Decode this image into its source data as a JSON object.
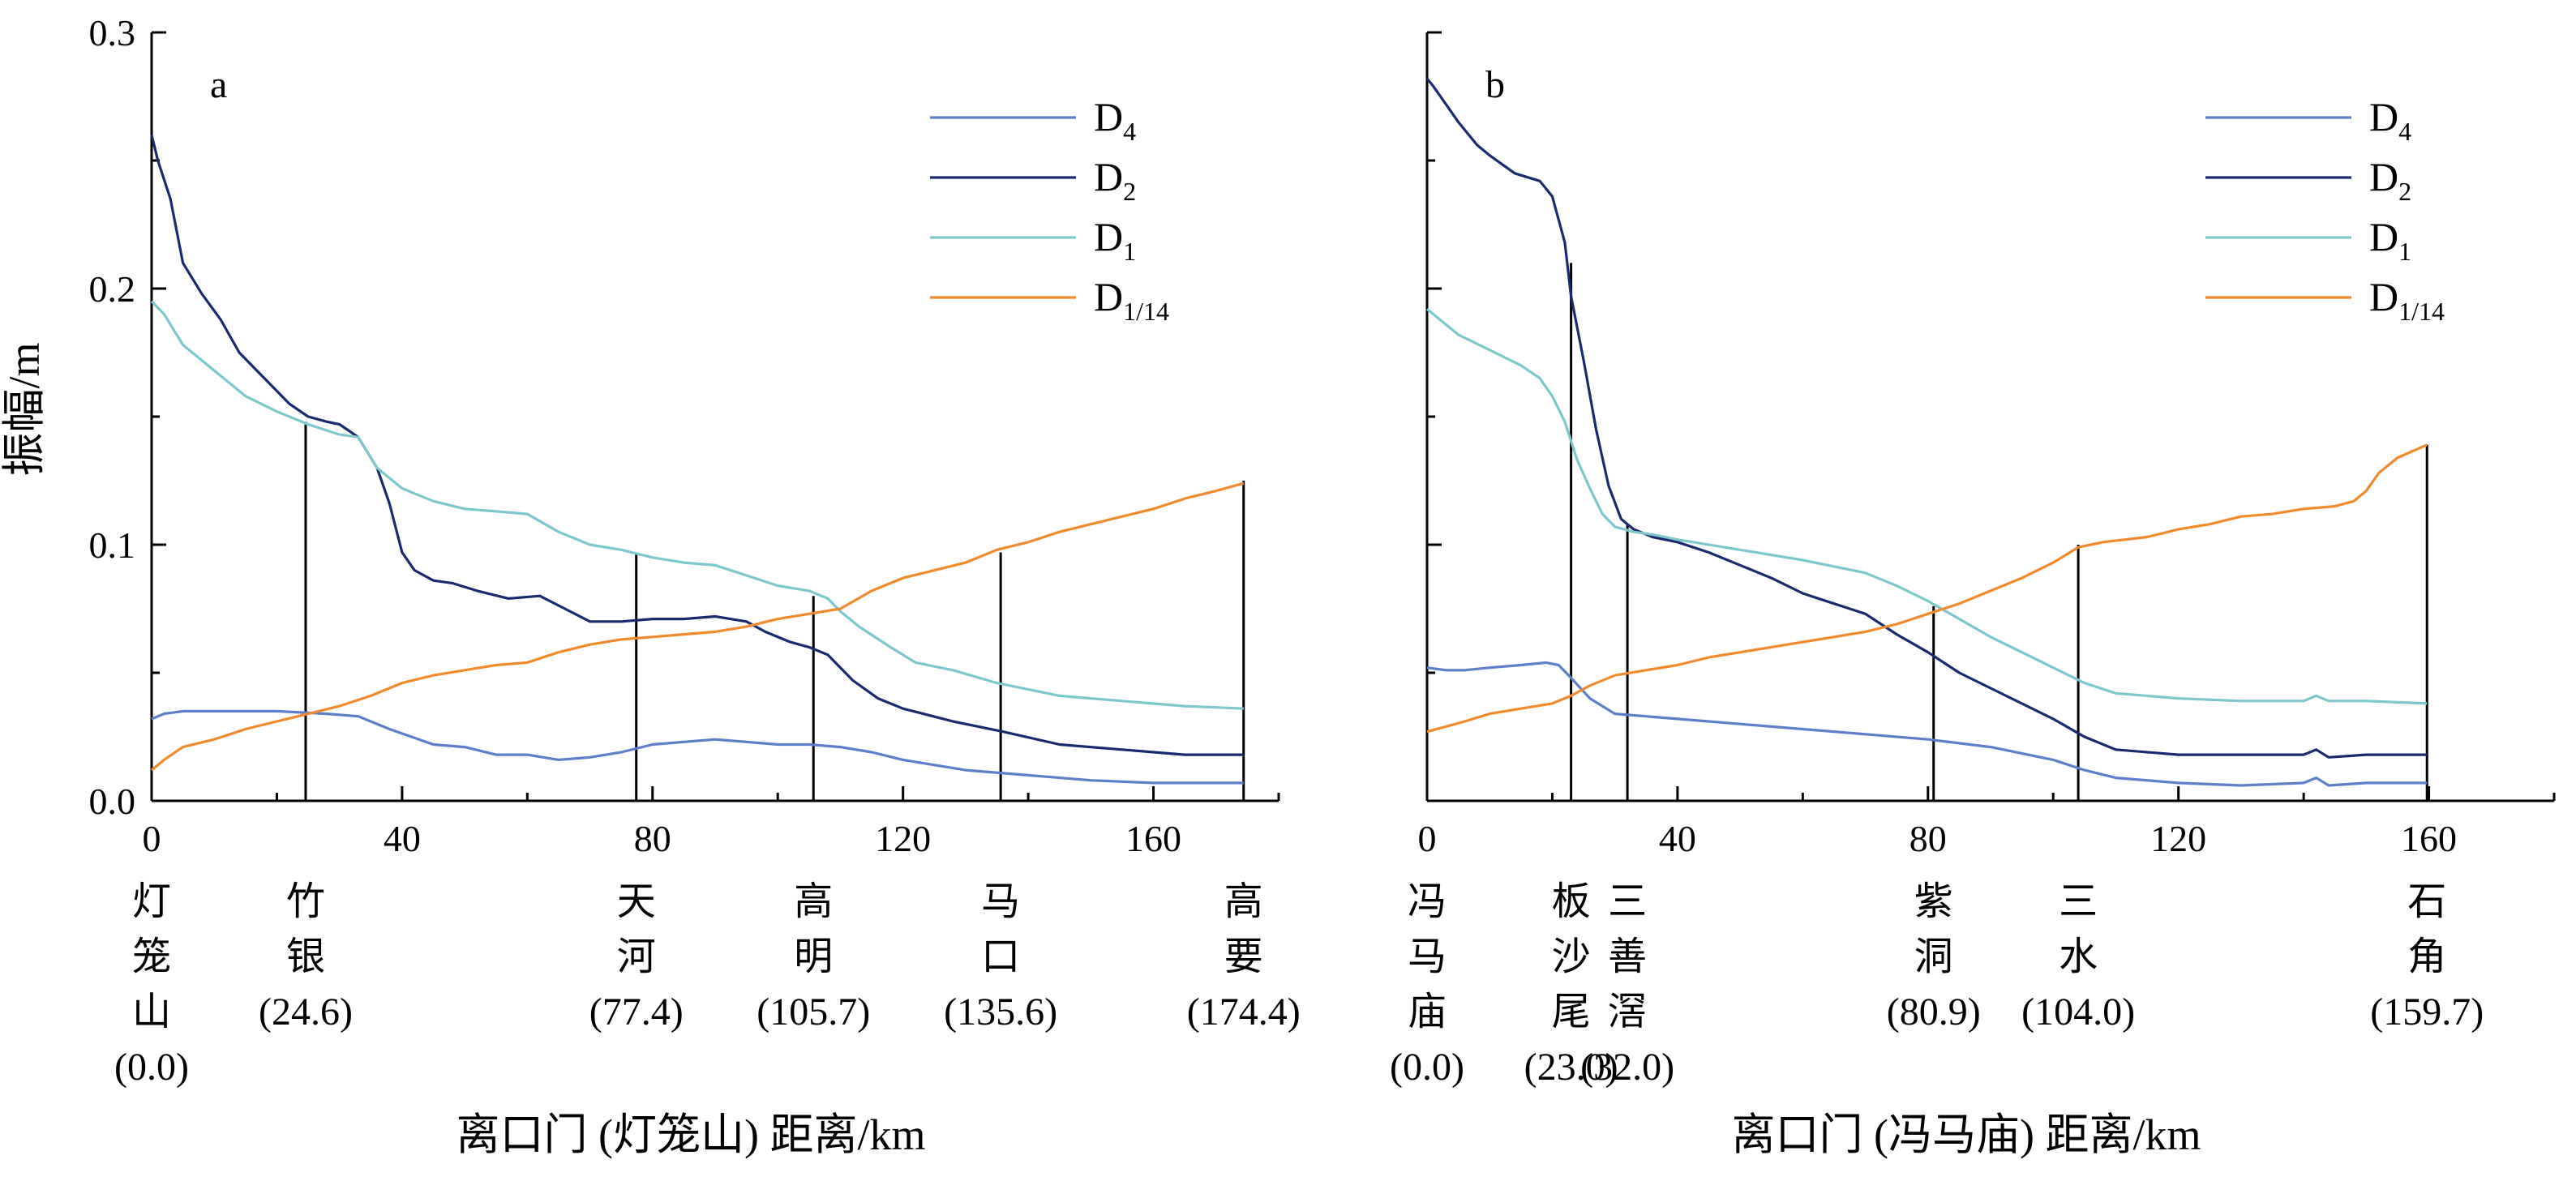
{
  "colors": {
    "D4": "#5b7fc9",
    "D2": "#1a2a6e",
    "D1": "#7cc8cc",
    "D1_14": "#f08a2c"
  },
  "ylabel": "振幅/m",
  "chart_data": [
    {
      "type": "line",
      "panel_label": "a",
      "xlabel": "离口门 (灯笼山) 距离/km",
      "ylabel": "振幅/m",
      "xlim": [
        0,
        180
      ],
      "ylim": [
        0,
        0.3
      ],
      "xticks": [
        "0",
        "40",
        "80",
        "120",
        "160"
      ],
      "yticks": [
        "0.0",
        "0.1",
        "0.2",
        "0.3"
      ],
      "legend_position": "top-right",
      "legend": [
        {
          "key": "D4",
          "main": "D",
          "sub": "4"
        },
        {
          "key": "D2",
          "main": "D",
          "sub": "2"
        },
        {
          "key": "D1",
          "main": "D",
          "sub": "1"
        },
        {
          "key": "D1_14",
          "main": "D",
          "sub": "1/14"
        }
      ],
      "stations": [
        {
          "name": [
            "灯",
            "笼",
            "山"
          ],
          "km": 0.0,
          "km_label": "(0.0)",
          "line_top": null
        },
        {
          "name": [
            "竹",
            "银"
          ],
          "km": 24.6,
          "km_label": "(24.6)",
          "line_top": 0.148
        },
        {
          "name": [
            "天",
            "河"
          ],
          "km": 77.4,
          "km_label": "(77.4)",
          "line_top": 0.097
        },
        {
          "name": [
            "高",
            "明"
          ],
          "km": 105.7,
          "km_label": "(105.7)",
          "line_top": 0.08
        },
        {
          "name": [
            "马",
            "口"
          ],
          "km": 135.6,
          "km_label": "(135.6)",
          "line_top": 0.097
        },
        {
          "name": [
            "高",
            "要"
          ],
          "km": 174.4,
          "km_label": "(174.4)",
          "line_top": 0.125
        }
      ],
      "series": [
        {
          "key": "D4",
          "x": [
            0,
            2,
            5,
            10,
            20,
            28,
            33,
            38,
            45,
            50,
            55,
            60,
            65,
            70,
            75,
            80,
            85,
            90,
            95,
            100,
            105,
            110,
            115,
            120,
            130,
            140,
            150,
            160,
            170,
            174.4
          ],
          "y": [
            0.032,
            0.034,
            0.035,
            0.035,
            0.035,
            0.034,
            0.033,
            0.028,
            0.022,
            0.021,
            0.018,
            0.018,
            0.016,
            0.017,
            0.019,
            0.022,
            0.023,
            0.024,
            0.023,
            0.022,
            0.022,
            0.021,
            0.019,
            0.016,
            0.012,
            0.01,
            0.008,
            0.007,
            0.007,
            0.007
          ]
        },
        {
          "key": "D2",
          "x": [
            0,
            1,
            3,
            5,
            8,
            11,
            14,
            18,
            22,
            25,
            28,
            30,
            33,
            36,
            38,
            40,
            42,
            45,
            48,
            52,
            57,
            62,
            66,
            70,
            75,
            80,
            85,
            90,
            95,
            98,
            102,
            105,
            108,
            112,
            116,
            120,
            128,
            136,
            145,
            155,
            165,
            174.4
          ],
          "y": [
            0.26,
            0.25,
            0.235,
            0.21,
            0.198,
            0.188,
            0.175,
            0.165,
            0.155,
            0.15,
            0.148,
            0.147,
            0.142,
            0.13,
            0.116,
            0.097,
            0.09,
            0.086,
            0.085,
            0.082,
            0.079,
            0.08,
            0.075,
            0.07,
            0.07,
            0.071,
            0.071,
            0.072,
            0.07,
            0.066,
            0.062,
            0.06,
            0.057,
            0.047,
            0.04,
            0.036,
            0.031,
            0.027,
            0.022,
            0.02,
            0.018,
            0.018
          ]
        },
        {
          "key": "D1",
          "x": [
            0,
            2,
            5,
            10,
            15,
            20,
            25,
            30,
            33,
            36,
            40,
            45,
            50,
            55,
            60,
            65,
            70,
            75,
            80,
            85,
            90,
            95,
            100,
            105,
            108,
            110,
            113,
            118,
            122,
            128,
            135,
            145,
            155,
            165,
            174.4
          ],
          "y": [
            0.195,
            0.19,
            0.178,
            0.168,
            0.158,
            0.152,
            0.147,
            0.143,
            0.142,
            0.13,
            0.122,
            0.117,
            0.114,
            0.113,
            0.112,
            0.105,
            0.1,
            0.098,
            0.095,
            0.093,
            0.092,
            0.088,
            0.084,
            0.082,
            0.079,
            0.074,
            0.068,
            0.06,
            0.054,
            0.051,
            0.046,
            0.041,
            0.039,
            0.037,
            0.036
          ]
        },
        {
          "key": "D1_14",
          "x": [
            0,
            2,
            5,
            10,
            15,
            20,
            25,
            30,
            35,
            40,
            45,
            50,
            55,
            60,
            65,
            70,
            75,
            80,
            85,
            90,
            95,
            100,
            105,
            110,
            115,
            120,
            125,
            130,
            135,
            140,
            145,
            150,
            155,
            160,
            165,
            170,
            174.4
          ],
          "y": [
            0.012,
            0.016,
            0.021,
            0.024,
            0.028,
            0.031,
            0.034,
            0.037,
            0.041,
            0.046,
            0.049,
            0.051,
            0.053,
            0.054,
            0.058,
            0.061,
            0.063,
            0.064,
            0.065,
            0.066,
            0.068,
            0.071,
            0.073,
            0.075,
            0.082,
            0.087,
            0.09,
            0.093,
            0.098,
            0.101,
            0.105,
            0.108,
            0.111,
            0.114,
            0.118,
            0.121,
            0.124
          ]
        }
      ]
    },
    {
      "type": "line",
      "panel_label": "b",
      "xlabel": "离口门 (冯马庙) 距离/km",
      "ylabel": "",
      "xlim": [
        0,
        180
      ],
      "ylim": [
        0,
        0.3
      ],
      "xticks": [
        "0",
        "40",
        "80",
        "120",
        "160"
      ],
      "yticks": [],
      "legend_position": "top-right",
      "legend": [
        {
          "key": "D4",
          "main": "D",
          "sub": "4"
        },
        {
          "key": "D2",
          "main": "D",
          "sub": "2"
        },
        {
          "key": "D1",
          "main": "D",
          "sub": "1"
        },
        {
          "key": "D1_14",
          "main": "D",
          "sub": "1/14"
        }
      ],
      "stations": [
        {
          "name": [
            "冯",
            "马",
            "庙"
          ],
          "km": 0.0,
          "km_label": "(0.0)",
          "line_top": null
        },
        {
          "name": [
            "板",
            "沙",
            "尾"
          ],
          "km": 23.0,
          "km_label": "(23.0)",
          "line_top": 0.21
        },
        {
          "name": [
            "三",
            "善",
            "滘"
          ],
          "km": 32.0,
          "km_label": "(32.0)",
          "line_top": 0.108
        },
        {
          "name": [
            "紫",
            "洞"
          ],
          "km": 80.9,
          "km_label": "(80.9)",
          "line_top": 0.076
        },
        {
          "name": [
            "三",
            "水"
          ],
          "km": 104.0,
          "km_label": "(104.0)",
          "line_top": 0.1
        },
        {
          "name": [
            "石",
            "角"
          ],
          "km": 159.7,
          "km_label": "(159.7)",
          "line_top": 0.139
        }
      ],
      "series": [
        {
          "key": "D4",
          "x": [
            0,
            3,
            6,
            10,
            15,
            19,
            21,
            23,
            26,
            30,
            35,
            40,
            50,
            60,
            70,
            80,
            90,
            100,
            105,
            110,
            120,
            130,
            140,
            142,
            144,
            150,
            159.7
          ],
          "y": [
            0.052,
            0.051,
            0.051,
            0.052,
            0.053,
            0.054,
            0.053,
            0.048,
            0.04,
            0.034,
            0.033,
            0.032,
            0.03,
            0.028,
            0.026,
            0.024,
            0.021,
            0.016,
            0.012,
            0.009,
            0.007,
            0.006,
            0.007,
            0.009,
            0.006,
            0.007,
            0.007
          ]
        },
        {
          "key": "D2",
          "x": [
            0,
            1,
            3,
            5,
            8,
            10,
            14,
            18,
            20,
            22,
            23,
            25,
            27,
            29,
            31,
            33,
            36,
            40,
            45,
            50,
            55,
            60,
            65,
            70,
            75,
            80,
            85,
            90,
            95,
            100,
            105,
            110,
            120,
            130,
            140,
            142,
            144,
            150,
            159.7
          ],
          "y": [
            0.282,
            0.279,
            0.272,
            0.265,
            0.256,
            0.252,
            0.245,
            0.242,
            0.236,
            0.218,
            0.197,
            0.172,
            0.145,
            0.123,
            0.11,
            0.106,
            0.103,
            0.101,
            0.097,
            0.092,
            0.087,
            0.081,
            0.077,
            0.073,
            0.065,
            0.058,
            0.05,
            0.044,
            0.038,
            0.032,
            0.025,
            0.02,
            0.018,
            0.018,
            0.018,
            0.02,
            0.017,
            0.018,
            0.018
          ]
        },
        {
          "key": "D1",
          "x": [
            0,
            2,
            5,
            10,
            15,
            18,
            20,
            22,
            24,
            26,
            28,
            30,
            33,
            36,
            40,
            50,
            60,
            70,
            75,
            80,
            85,
            90,
            95,
            100,
            105,
            110,
            120,
            130,
            140,
            142,
            144,
            150,
            159.7
          ],
          "y": [
            0.192,
            0.188,
            0.182,
            0.176,
            0.17,
            0.165,
            0.158,
            0.148,
            0.133,
            0.122,
            0.112,
            0.107,
            0.105,
            0.104,
            0.102,
            0.098,
            0.094,
            0.089,
            0.084,
            0.078,
            0.071,
            0.064,
            0.058,
            0.052,
            0.046,
            0.042,
            0.04,
            0.039,
            0.039,
            0.041,
            0.039,
            0.039,
            0.038
          ]
        },
        {
          "key": "D1_14",
          "x": [
            0,
            3,
            6,
            10,
            15,
            20,
            23,
            26,
            30,
            35,
            40,
            45,
            50,
            55,
            60,
            65,
            70,
            75,
            80,
            85,
            90,
            95,
            100,
            104,
            108,
            115,
            120,
            125,
            130,
            135,
            140,
            145,
            148,
            150,
            152,
            155,
            159.7
          ],
          "y": [
            0.027,
            0.029,
            0.031,
            0.034,
            0.036,
            0.038,
            0.041,
            0.045,
            0.049,
            0.051,
            0.053,
            0.056,
            0.058,
            0.06,
            0.062,
            0.064,
            0.066,
            0.069,
            0.073,
            0.077,
            0.082,
            0.087,
            0.093,
            0.099,
            0.101,
            0.103,
            0.106,
            0.108,
            0.111,
            0.112,
            0.114,
            0.115,
            0.117,
            0.121,
            0.128,
            0.134,
            0.139
          ]
        }
      ]
    }
  ]
}
